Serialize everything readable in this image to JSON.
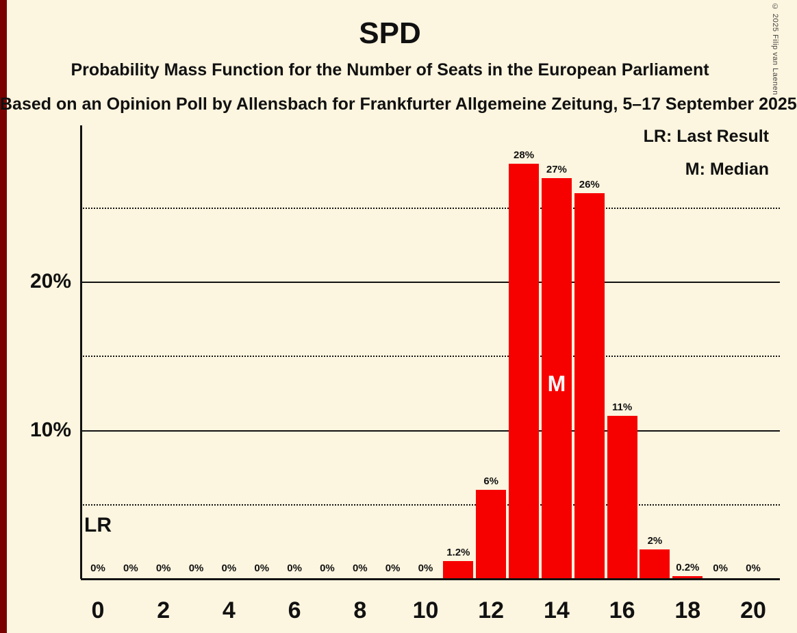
{
  "page": {
    "background_color": "#FCF5DF",
    "left_strip_color": "#7A0000"
  },
  "header": {
    "title": "SPD",
    "subtitle1": "Probability Mass Function for the Number of Seats in the European Parliament",
    "subtitle2": "Based on an Opinion Poll by Allensbach for Frankfurter Allgemeine Zeitung, 5–17 September 2025"
  },
  "legend": {
    "lr_entry": "LR: Last Result",
    "m_entry": "M: Median"
  },
  "copyright": "© 2025 Filip van Laenen",
  "chart_data": {
    "type": "bar",
    "title": "SPD",
    "categories": [
      0,
      1,
      2,
      3,
      4,
      5,
      6,
      7,
      8,
      9,
      10,
      11,
      12,
      13,
      14,
      15,
      16,
      17,
      18,
      19,
      20
    ],
    "values": [
      0,
      0,
      0,
      0,
      0,
      0,
      0,
      0,
      0,
      0,
      0,
      1.2,
      6,
      28,
      27,
      26,
      11,
      2,
      0.2,
      0,
      0
    ],
    "bar_labels": [
      "0%",
      "0%",
      "0%",
      "0%",
      "0%",
      "0%",
      "0%",
      "0%",
      "0%",
      "0%",
      "0%",
      "1.2%",
      "6%",
      "28%",
      "27%",
      "26%",
      "11%",
      "2%",
      "0.2%",
      "0%",
      "0%"
    ],
    "bar_color": "#F70000",
    "median_marker": "M",
    "median_seat": 14,
    "lr_marker": "LR",
    "lr_seat": 0,
    "y_ticks": [
      {
        "value": 10,
        "label": "10%"
      },
      {
        "value": 20,
        "label": "20%"
      }
    ],
    "x_ticks": [
      {
        "seat": 0,
        "label": "0"
      },
      {
        "seat": 2,
        "label": "2"
      },
      {
        "seat": 4,
        "label": "4"
      },
      {
        "seat": 6,
        "label": "6"
      },
      {
        "seat": 8,
        "label": "8"
      },
      {
        "seat": 10,
        "label": "10"
      },
      {
        "seat": 12,
        "label": "12"
      },
      {
        "seat": 14,
        "label": "14"
      },
      {
        "seat": 16,
        "label": "16"
      },
      {
        "seat": 18,
        "label": "18"
      },
      {
        "seat": 20,
        "label": "20"
      }
    ],
    "solid_gridlines": [
      10,
      20
    ],
    "dotted_gridlines": [
      5,
      15,
      25
    ],
    "ylim": [
      0,
      30.5
    ],
    "grid": "on",
    "legend_position": "top-right"
  }
}
